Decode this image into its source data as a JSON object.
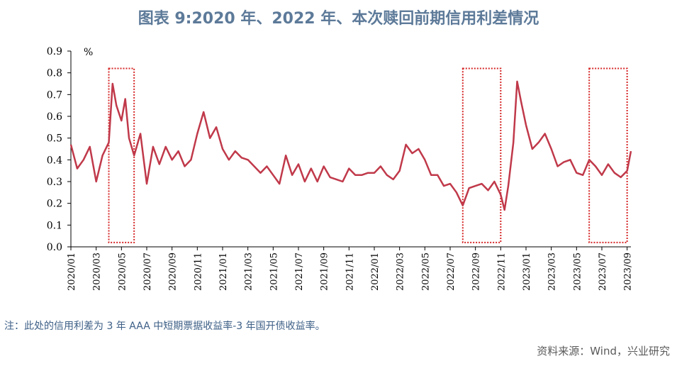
{
  "title": "图表 9:2020 年、2022 年、本次赎回前期信用利差情况",
  "note": "注：此处的信用利差为 3 年 AAA 中短期票据收益率-3 年国开债收益率。",
  "source": "资料来源：Wind，兴业研究",
  "chart_data": {
    "type": "line",
    "title": "图表 9:2020 年、2022 年、本次赎回前期信用利差情况",
    "ylabel": "%",
    "xlabel": "",
    "ylim": [
      0,
      0.9
    ],
    "yticks": [
      "0.0",
      "0.1",
      "0.2",
      "0.3",
      "0.4",
      "0.5",
      "0.6",
      "0.7",
      "0.8",
      "0.9"
    ],
    "xticks": [
      "2020/01",
      "2020/03",
      "2020/05",
      "2020/07",
      "2020/09",
      "2020/11",
      "2021/01",
      "2021/03",
      "2021/05",
      "2021/07",
      "2021/09",
      "2021/11",
      "2022/01",
      "2022/03",
      "2022/05",
      "2022/07",
      "2022/09",
      "2022/11",
      "2023/01",
      "2023/03",
      "2023/05",
      "2023/07",
      "2023/09"
    ],
    "line_color": "#c0394a",
    "highlight_color": "#d62728",
    "highlight_ranges": [
      [
        "2020/04",
        "2020/06"
      ],
      [
        "2022/08",
        "2022/11"
      ],
      [
        "2023/06",
        "2023/09"
      ]
    ],
    "series": [
      {
        "x": [
          "2020/01",
          "2020/01.5",
          "2020/02",
          "2020/02.5",
          "2020/03",
          "2020/03.5",
          "2020/04",
          "2020/04.3",
          "2020/04.6",
          "2020/05",
          "2020/05.3",
          "2020/05.6",
          "2020/06",
          "2020/06.5",
          "2020/07",
          "2020/07.5",
          "2020/08",
          "2020/08.5",
          "2020/09",
          "2020/09.5",
          "2020/10",
          "2020/10.5",
          "2020/11",
          "2020/11.5",
          "2020/12",
          "2020/12.5",
          "2021/01",
          "2021/01.5",
          "2021/02",
          "2021/02.5",
          "2021/03",
          "2021/03.5",
          "2021/04",
          "2021/04.5",
          "2021/05",
          "2021/05.5",
          "2021/06",
          "2021/06.5",
          "2021/07",
          "2021/07.5",
          "2021/08",
          "2021/08.5",
          "2021/09",
          "2021/09.5",
          "2021/10",
          "2021/10.5",
          "2021/11",
          "2021/11.5",
          "2021/12",
          "2021/12.5",
          "2022/01",
          "2022/01.5",
          "2022/02",
          "2022/02.5",
          "2022/03",
          "2022/03.5",
          "2022/04",
          "2022/04.5",
          "2022/05",
          "2022/05.5",
          "2022/06",
          "2022/06.5",
          "2022/07",
          "2022/07.5",
          "2022/08",
          "2022/08.5",
          "2022/09",
          "2022/09.5",
          "2022/10",
          "2022/10.5",
          "2022/11",
          "2022/11.3",
          "2022/11.6",
          "2022/12",
          "2022/12.3",
          "2022/12.6",
          "2023/01",
          "2023/01.5",
          "2023/02",
          "2023/02.5",
          "2023/03",
          "2023/03.5",
          "2023/04",
          "2023/04.5",
          "2023/05",
          "2023/05.5",
          "2023/06",
          "2023/06.5",
          "2023/07",
          "2023/07.5",
          "2023/08",
          "2023/08.5",
          "2023/09",
          "2023/09.3"
        ],
        "values": [
          0.47,
          0.36,
          0.4,
          0.46,
          0.3,
          0.42,
          0.48,
          0.75,
          0.65,
          0.58,
          0.68,
          0.5,
          0.42,
          0.52,
          0.29,
          0.46,
          0.38,
          0.46,
          0.4,
          0.44,
          0.37,
          0.4,
          0.52,
          0.62,
          0.5,
          0.55,
          0.45,
          0.4,
          0.44,
          0.41,
          0.4,
          0.37,
          0.34,
          0.37,
          0.33,
          0.29,
          0.42,
          0.33,
          0.38,
          0.3,
          0.36,
          0.3,
          0.37,
          0.32,
          0.31,
          0.3,
          0.36,
          0.33,
          0.33,
          0.34,
          0.34,
          0.37,
          0.33,
          0.31,
          0.35,
          0.47,
          0.43,
          0.45,
          0.4,
          0.33,
          0.33,
          0.28,
          0.29,
          0.25,
          0.19,
          0.27,
          0.28,
          0.29,
          0.26,
          0.3,
          0.24,
          0.17,
          0.28,
          0.48,
          0.76,
          0.67,
          0.56,
          0.45,
          0.48,
          0.52,
          0.45,
          0.37,
          0.39,
          0.4,
          0.34,
          0.33,
          0.4,
          0.37,
          0.33,
          0.38,
          0.34,
          0.32,
          0.35,
          0.44
        ]
      }
    ]
  }
}
